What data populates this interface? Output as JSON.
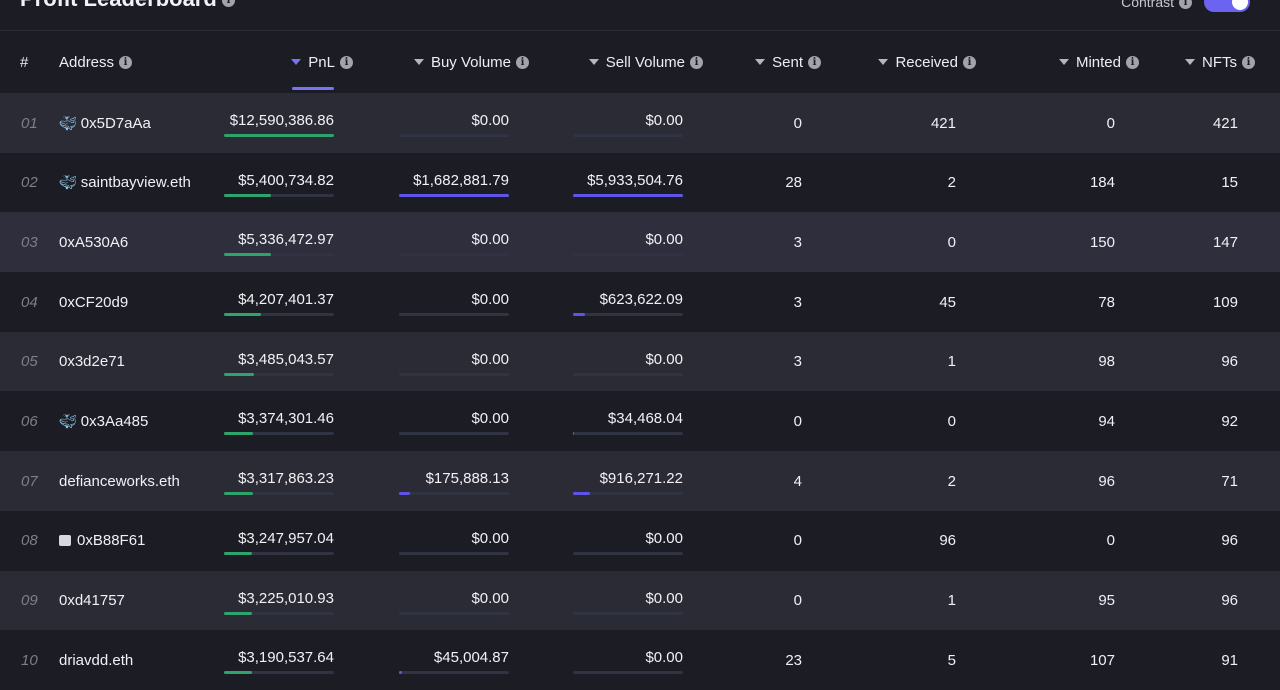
{
  "page": {
    "title": "Profit Leaderboard",
    "contrast_label": "Contrast"
  },
  "columns": {
    "rank": "#",
    "address": "Address",
    "pnl": "PnL",
    "buy_volume": "Buy Volume",
    "sell_volume": "Sell Volume",
    "sent": "Sent",
    "received": "Received",
    "minted": "Minted",
    "nfts": "NFTs"
  },
  "colors": {
    "accent": "#7b73f5",
    "pnl_bar": "#2ea36b",
    "volume_bar": "#5e54e6"
  },
  "rows": [
    {
      "rank": "01",
      "badge": "whale",
      "address": "0x5D7aAa",
      "pnl": "$12,590,386.86",
      "buy": "$0.00",
      "sell": "$0.00",
      "sent": "0",
      "received": "421",
      "minted": "0",
      "nfts": "421"
    },
    {
      "rank": "02",
      "badge": "whale",
      "address": "saintbayview.eth",
      "pnl": "$5,400,734.82",
      "buy": "$1,682,881.79",
      "sell": "$5,933,504.76",
      "sent": "28",
      "received": "2",
      "minted": "184",
      "nfts": "15"
    },
    {
      "rank": "03",
      "badge": "",
      "address": "0xA530A6",
      "pnl": "$5,336,472.97",
      "buy": "$0.00",
      "sell": "$0.00",
      "sent": "3",
      "received": "0",
      "minted": "150",
      "nfts": "147"
    },
    {
      "rank": "04",
      "badge": "",
      "address": "0xCF20d9",
      "pnl": "$4,207,401.37",
      "buy": "$0.00",
      "sell": "$623,622.09",
      "sent": "3",
      "received": "45",
      "minted": "78",
      "nfts": "109"
    },
    {
      "rank": "05",
      "badge": "",
      "address": "0x3d2e71",
      "pnl": "$3,485,043.57",
      "buy": "$0.00",
      "sell": "$0.00",
      "sent": "3",
      "received": "1",
      "minted": "98",
      "nfts": "96"
    },
    {
      "rank": "06",
      "badge": "whale",
      "address": "0x3Aa485",
      "pnl": "$3,374,301.46",
      "buy": "$0.00",
      "sell": "$34,468.04",
      "sent": "0",
      "received": "0",
      "minted": "94",
      "nfts": "92"
    },
    {
      "rank": "07",
      "badge": "",
      "address": "defianceworks.eth",
      "pnl": "$3,317,863.23",
      "buy": "$175,888.13",
      "sell": "$916,271.22",
      "sent": "4",
      "received": "2",
      "minted": "96",
      "nfts": "71"
    },
    {
      "rank": "08",
      "badge": "square",
      "address": "0xB88F61",
      "pnl": "$3,247,957.04",
      "buy": "$0.00",
      "sell": "$0.00",
      "sent": "0",
      "received": "96",
      "minted": "0",
      "nfts": "96"
    },
    {
      "rank": "09",
      "badge": "",
      "address": "0xd41757",
      "pnl": "$3,225,010.93",
      "buy": "$0.00",
      "sell": "$0.00",
      "sent": "0",
      "received": "1",
      "minted": "95",
      "nfts": "96"
    },
    {
      "rank": "10",
      "badge": "",
      "address": "driavdd.eth",
      "pnl": "$3,190,537.64",
      "buy": "$45,004.87",
      "sell": "$0.00",
      "sent": "23",
      "received": "5",
      "minted": "107",
      "nfts": "91"
    }
  ]
}
